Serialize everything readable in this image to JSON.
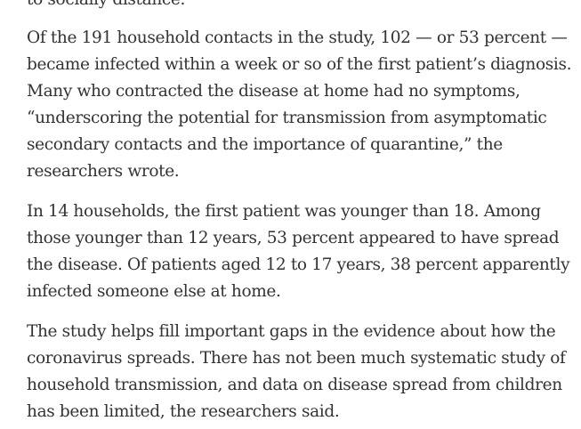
{
  "article": {
    "paragraphs": [
      {
        "lines": [
          "to socially distance."
        ]
      },
      {
        "lines": [
          "Of the 191 household contacts in the study, 102 — or 53 percent —",
          "became infected within a week or so of the first patient’s diagnosis.",
          "Many who contracted the disease at home had no symptoms,",
          "“underscoring the potential for transmission from asymptomatic",
          "secondary contacts and the importance of quarantine,” the",
          "researchers wrote."
        ]
      },
      {
        "lines": [
          "In 14 households, the first patient was younger than 18. Among",
          "those younger than 12 years, 53 percent appeared to have spread",
          "the disease. Of patients aged 12 to 17 years, 38 percent apparently",
          "infected someone else at home."
        ]
      },
      {
        "lines": [
          "The study helps fill important gaps in the evidence about how the",
          "coronavirus spreads. There has not been much systematic study of",
          "household transmission, and data on disease spread from children",
          "has been limited, the researchers said."
        ]
      }
    ]
  }
}
